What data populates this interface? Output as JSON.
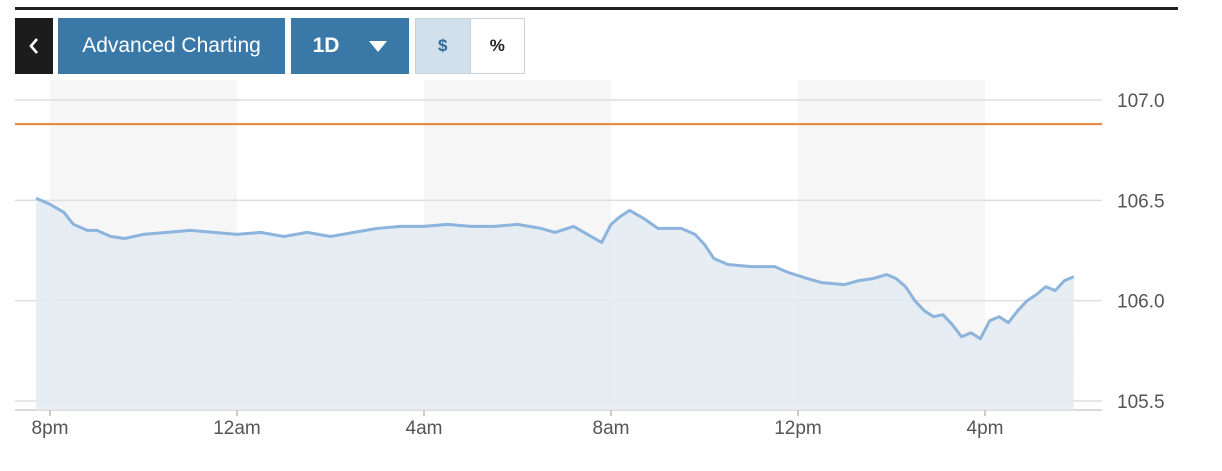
{
  "toolbar": {
    "back_icon": "chevron-left-icon",
    "advanced_label": "Advanced Charting",
    "range_label": "1D",
    "range_icon": "caret-down-icon",
    "unit_dollar": "$",
    "unit_percent": "%",
    "selected_unit": "$"
  },
  "colors": {
    "line": "#8db4dd",
    "area": "#e2ebf2",
    "ref_line": "#e8833a",
    "band": "#f6f6f6",
    "button": "#3a78a8"
  },
  "chart_data": {
    "type": "area",
    "x_unit": "hours since 8pm",
    "xlim": [
      -0.6,
      22.1
    ],
    "ylim": [
      105.5,
      107.0
    ],
    "y_ticks": [
      107.0,
      106.5,
      106.0,
      105.5
    ],
    "y_tick_labels": [
      "107.0",
      "106.5",
      "106.0",
      "105.5"
    ],
    "x_ticks": [
      0,
      4,
      8,
      12,
      16,
      20
    ],
    "x_tick_labels": [
      "8pm",
      "12am",
      "4am",
      "8am",
      "12pm",
      "4pm"
    ],
    "reference_line": 106.88,
    "grid": true,
    "points": [
      [
        -0.3,
        106.51
      ],
      [
        0.0,
        106.48
      ],
      [
        0.3,
        106.44
      ],
      [
        0.5,
        106.38
      ],
      [
        0.8,
        106.35
      ],
      [
        1.0,
        106.35
      ],
      [
        1.3,
        106.32
      ],
      [
        1.6,
        106.31
      ],
      [
        2.0,
        106.33
      ],
      [
        2.5,
        106.34
      ],
      [
        3.0,
        106.35
      ],
      [
        3.5,
        106.34
      ],
      [
        4.0,
        106.33
      ],
      [
        4.5,
        106.34
      ],
      [
        5.0,
        106.32
      ],
      [
        5.5,
        106.34
      ],
      [
        6.0,
        106.32
      ],
      [
        6.5,
        106.34
      ],
      [
        7.0,
        106.36
      ],
      [
        7.5,
        106.37
      ],
      [
        8.0,
        106.37
      ],
      [
        8.5,
        106.38
      ],
      [
        9.0,
        106.37
      ],
      [
        9.5,
        106.37
      ],
      [
        10.0,
        106.38
      ],
      [
        10.5,
        106.36
      ],
      [
        10.8,
        106.34
      ],
      [
        11.2,
        106.37
      ],
      [
        11.5,
        106.33
      ],
      [
        11.8,
        106.29
      ],
      [
        12.0,
        106.38
      ],
      [
        12.2,
        106.42
      ],
      [
        12.4,
        106.45
      ],
      [
        12.7,
        106.41
      ],
      [
        13.0,
        106.36
      ],
      [
        13.5,
        106.36
      ],
      [
        13.8,
        106.33
      ],
      [
        14.0,
        106.28
      ],
      [
        14.2,
        106.21
      ],
      [
        14.5,
        106.18
      ],
      [
        15.0,
        106.17
      ],
      [
        15.5,
        106.17
      ],
      [
        15.8,
        106.14
      ],
      [
        16.2,
        106.11
      ],
      [
        16.5,
        106.09
      ],
      [
        17.0,
        106.08
      ],
      [
        17.3,
        106.1
      ],
      [
        17.6,
        106.11
      ],
      [
        17.9,
        106.13
      ],
      [
        18.1,
        106.11
      ],
      [
        18.3,
        106.07
      ],
      [
        18.5,
        106.0
      ],
      [
        18.7,
        105.95
      ],
      [
        18.9,
        105.92
      ],
      [
        19.1,
        105.93
      ],
      [
        19.3,
        105.88
      ],
      [
        19.5,
        105.82
      ],
      [
        19.7,
        105.84
      ],
      [
        19.9,
        105.81
      ],
      [
        20.1,
        105.9
      ],
      [
        20.3,
        105.92
      ],
      [
        20.5,
        105.89
      ],
      [
        20.7,
        105.95
      ],
      [
        20.9,
        106.0
      ],
      [
        21.1,
        106.03
      ],
      [
        21.3,
        106.07
      ],
      [
        21.5,
        106.05
      ],
      [
        21.7,
        106.1
      ],
      [
        21.9,
        106.12
      ]
    ]
  }
}
